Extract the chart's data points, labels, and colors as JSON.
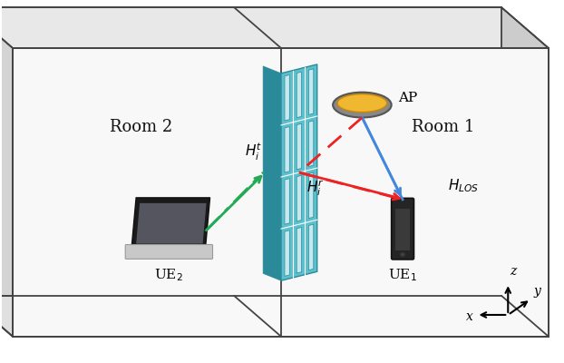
{
  "bg_color": "#ffffff",
  "ceiling_color": "#cccccc",
  "wall_back_color": "#e8e8e8",
  "wall_side_color": "#d4d4d4",
  "wall_front_color": "#f8f8f8",
  "floor_color": "#e0e0e0",
  "teal_color": "#5bbfcc",
  "teal_dark": "#2a8a9a",
  "pane_color": "#c8e8f0",
  "ap_outer": "#888888",
  "ap_inner": "#f0b830",
  "phone_color": "#222222",
  "line_blue": "#4488dd",
  "line_red": "#ee2222",
  "line_green": "#22aa55",
  "text_color": "#111111",
  "room1_label": "Room 1",
  "room2_label": "Room 2",
  "ap_label": "AP",
  "ue1_label": "UE$_1$",
  "ue2_label": "UE$_2$",
  "h_los_label": "$H_{LOS}$",
  "h_t_label": "$H_i^t$",
  "h_r_label": "$H_i^r$",
  "axis_x": "x",
  "axis_y": "y",
  "axis_z": "z"
}
